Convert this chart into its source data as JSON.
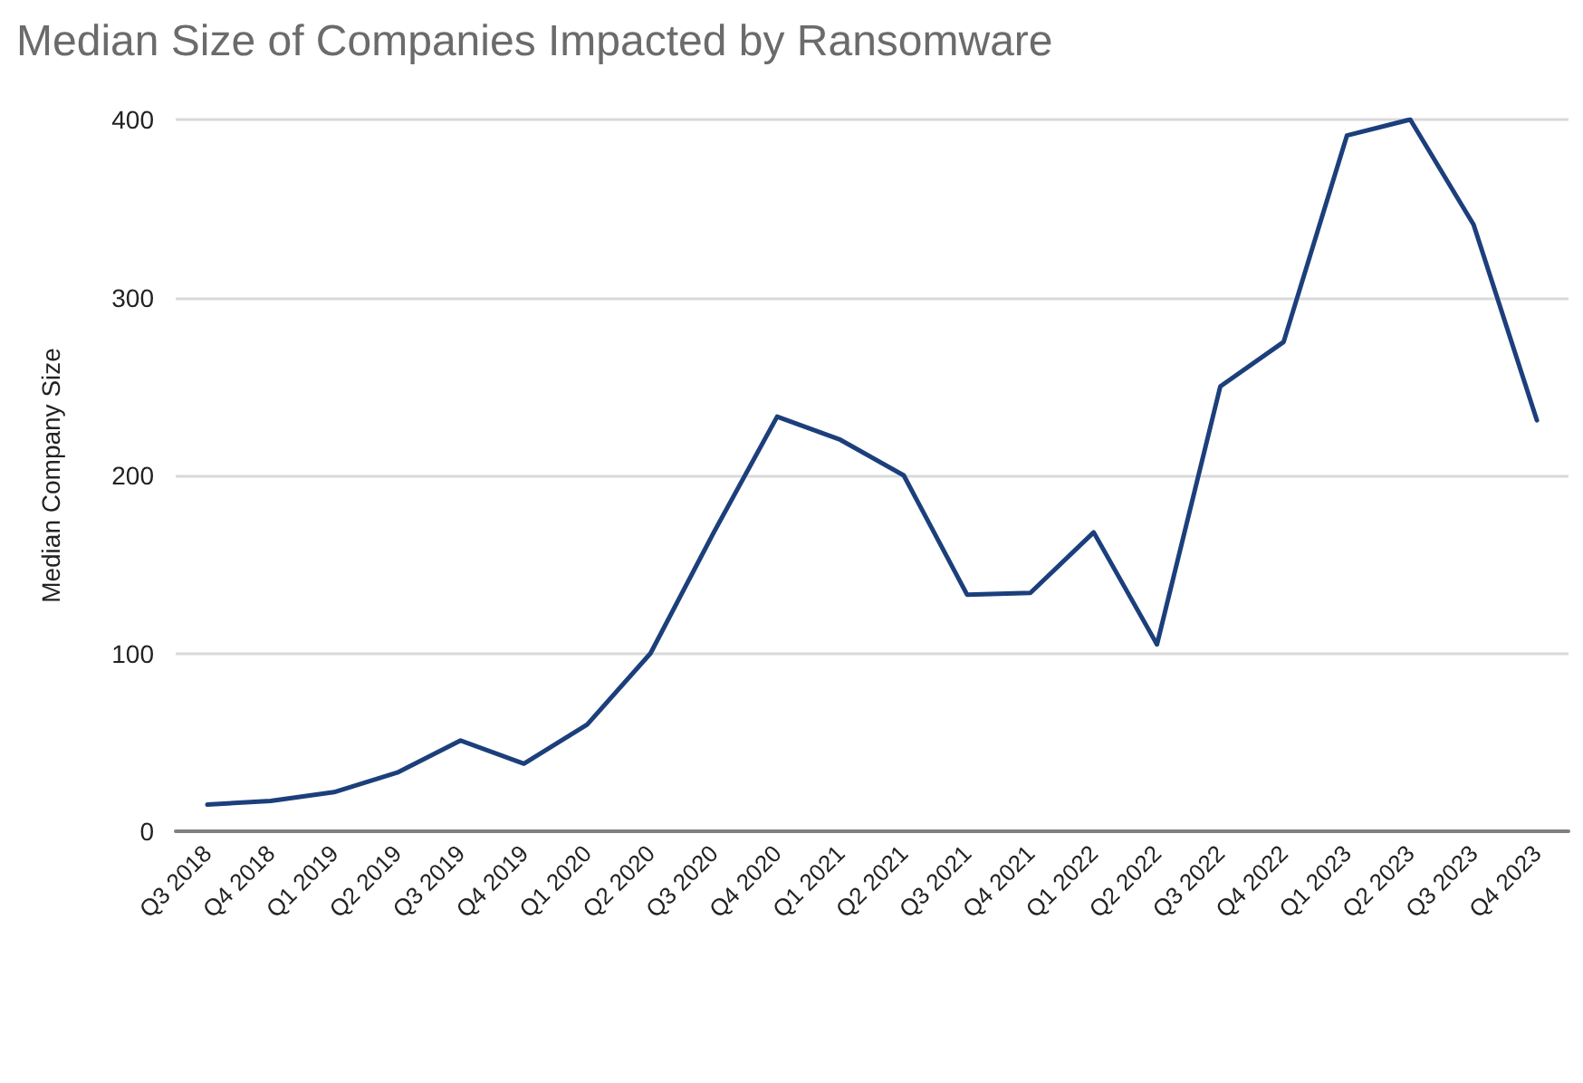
{
  "chart_data": {
    "type": "line",
    "title": "Median Size of Companies Impacted by Ransomware",
    "ylabel": "Median Company Size",
    "categories": [
      "Q3 2018",
      "Q4 2018",
      "Q1 2019",
      "Q2 2019",
      "Q3 2019",
      "Q4 2019",
      "Q1 2020",
      "Q2 2020",
      "Q3 2020",
      "Q4 2020",
      "Q1 2021",
      "Q2 2021",
      "Q3 2021",
      "Q4 2021",
      "Q1 2022",
      "Q2 2022",
      "Q3 2022",
      "Q4 2022",
      "Q1 2023",
      "Q2 2023",
      "Q3 2023",
      "Q4 2023"
    ],
    "series": [
      {
        "color": "#1c3f7c",
        "values": [
          15,
          17,
          22,
          33,
          51,
          38,
          60,
          100,
          168,
          233,
          220,
          200,
          133,
          134,
          168,
          105,
          250,
          275,
          391,
          400,
          341,
          231
        ]
      }
    ],
    "ylim": [
      0,
      400
    ],
    "yticks": [
      0,
      100,
      200,
      300,
      400
    ],
    "grid": "y",
    "marker": "none",
    "line_style": "solid"
  }
}
